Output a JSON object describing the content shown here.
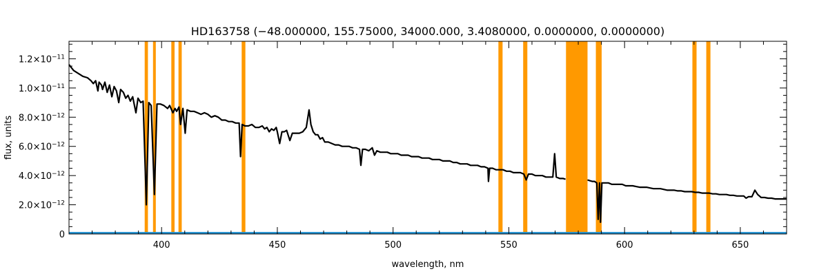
{
  "chart_data": {
    "type": "line",
    "title": "HD163758    (−48.000000, 155.75000, 34000.000, 3.4080000, 0.0000000, 0.0000000)",
    "xlabel": "wavelength, nm",
    "ylabel": "flux, units",
    "xlim": [
      360,
      670
    ],
    "ylim": [
      0,
      1.32e-11
    ],
    "x_ticks": [
      {
        "value": 400,
        "label": "400"
      },
      {
        "value": 450,
        "label": "450"
      },
      {
        "value": 500,
        "label": "500"
      },
      {
        "value": 550,
        "label": "550"
      },
      {
        "value": 600,
        "label": "600"
      },
      {
        "value": 650,
        "label": "650"
      }
    ],
    "y_ticks": [
      {
        "value": 0,
        "mantissa": "0",
        "exponent": ""
      },
      {
        "value": 2e-12,
        "mantissa": "2.0×10",
        "exponent": "−12"
      },
      {
        "value": 4e-12,
        "mantissa": "4.0×10",
        "exponent": "−12"
      },
      {
        "value": 6e-12,
        "mantissa": "6.0×10",
        "exponent": "−12"
      },
      {
        "value": 8e-12,
        "mantissa": "8.0×10",
        "exponent": "−12"
      },
      {
        "value": 1e-11,
        "mantissa": "1.0×10",
        "exponent": "−11"
      },
      {
        "value": 1.2e-11,
        "mantissa": "1.2×10",
        "exponent": "−11"
      }
    ],
    "grid": false,
    "colors": {
      "spectrum": "#000000",
      "bands": "#ff9900",
      "baseline": "#1e8fd0"
    },
    "masked_bands": [
      [
        392.7,
        394.1
      ],
      [
        396.3,
        397.5
      ],
      [
        404.2,
        405.6
      ],
      [
        407.3,
        408.7
      ],
      [
        434.6,
        436.2
      ],
      [
        545.5,
        547.3
      ],
      [
        556.2,
        558.0
      ],
      [
        574.7,
        584.0
      ],
      [
        587.6,
        590.1
      ],
      [
        629.3,
        631.1
      ],
      [
        635.3,
        637.1
      ]
    ],
    "series": [
      {
        "values": [
          [
            360,
            1.16e-11
          ],
          [
            362,
            1.12e-11
          ],
          [
            364,
            1.1e-11
          ],
          [
            366,
            1.08e-11
          ],
          [
            368,
            1.07e-11
          ],
          [
            369.5,
            1.05e-11
          ],
          [
            370.5,
            1.03e-11
          ],
          [
            371.5,
            1.05e-11
          ],
          [
            372.5,
            9.8e-12
          ],
          [
            373,
            1.04e-11
          ],
          [
            374,
            1.02e-11
          ],
          [
            374.5,
            9.9e-12
          ],
          [
            375.5,
            1.04e-11
          ],
          [
            376.5,
            9.7e-12
          ],
          [
            377.5,
            1.02e-11
          ],
          [
            378.5,
            9.4e-12
          ],
          [
            379.5,
            1.01e-11
          ],
          [
            380.5,
            9.8e-12
          ],
          [
            381.5,
            9e-12
          ],
          [
            382.3,
            9.9e-12
          ],
          [
            383.5,
            9.7e-12
          ],
          [
            384.5,
            9.3e-12
          ],
          [
            385.5,
            9.5e-12
          ],
          [
            386.5,
            9.1e-12
          ],
          [
            387.5,
            9.4e-12
          ],
          [
            388.9,
            8.3e-12
          ],
          [
            389.8,
            9.3e-12
          ],
          [
            391,
            9e-12
          ],
          [
            392,
            9.1e-12
          ],
          [
            393.4,
            2e-12
          ],
          [
            394.5,
            9e-12
          ],
          [
            395.5,
            8.8e-12
          ],
          [
            396.9,
            2.7e-12
          ],
          [
            398,
            8.9e-12
          ],
          [
            399.5,
            8.9e-12
          ],
          [
            401,
            8.8e-12
          ],
          [
            402.6,
            8.6e-12
          ],
          [
            403.5,
            8.8e-12
          ],
          [
            404.9,
            8.3e-12
          ],
          [
            405.8,
            8.6e-12
          ],
          [
            406.5,
            8.4e-12
          ],
          [
            407.5,
            8.7e-12
          ],
          [
            408.2,
            7.5e-12
          ],
          [
            409.2,
            8.6e-12
          ],
          [
            410.2,
            6.9e-12
          ],
          [
            411,
            8.5e-12
          ],
          [
            412.5,
            8.4e-12
          ],
          [
            414,
            8.4e-12
          ],
          [
            415.5,
            8.3e-12
          ],
          [
            417,
            8.2e-12
          ],
          [
            418.5,
            8.3e-12
          ],
          [
            420,
            8.2e-12
          ],
          [
            421.5,
            8e-12
          ],
          [
            423,
            8.1e-12
          ],
          [
            424.5,
            8e-12
          ],
          [
            426,
            7.8e-12
          ],
          [
            427.5,
            7.8e-12
          ],
          [
            429,
            7.7e-12
          ],
          [
            430.5,
            7.7e-12
          ],
          [
            432,
            7.6e-12
          ],
          [
            433.5,
            7.6e-12
          ],
          [
            434.1,
            5.3e-12
          ],
          [
            434.8,
            7.5e-12
          ],
          [
            436,
            7.4e-12
          ],
          [
            437.5,
            7.4e-12
          ],
          [
            439,
            7.5e-12
          ],
          [
            440.5,
            7.3e-12
          ],
          [
            442,
            7.3e-12
          ],
          [
            443.5,
            7.4e-12
          ],
          [
            444.5,
            7.2e-12
          ],
          [
            445.5,
            7.3e-12
          ],
          [
            446.5,
            7e-12
          ],
          [
            447.5,
            7.2e-12
          ],
          [
            448.5,
            7.1e-12
          ],
          [
            449.5,
            7.3e-12
          ],
          [
            450,
            7e-12
          ],
          [
            451,
            6.2e-12
          ],
          [
            452,
            7e-12
          ],
          [
            453,
            7e-12
          ],
          [
            454,
            7.1e-12
          ],
          [
            455.4,
            6.4e-12
          ],
          [
            456.5,
            6.9e-12
          ],
          [
            458,
            6.9e-12
          ],
          [
            459.5,
            6.9e-12
          ],
          [
            461,
            7e-12
          ],
          [
            462.5,
            7.3e-12
          ],
          [
            463.7,
            8.5e-12
          ],
          [
            464.5,
            7.5e-12
          ],
          [
            465.5,
            7e-12
          ],
          [
            466.5,
            6.8e-12
          ],
          [
            467.5,
            6.8e-12
          ],
          [
            468.5,
            6.5e-12
          ],
          [
            469.5,
            6.6e-12
          ],
          [
            470.5,
            6.3e-12
          ],
          [
            472,
            6.3e-12
          ],
          [
            473.5,
            6.2e-12
          ],
          [
            475,
            6.1e-12
          ],
          [
            476.5,
            6.1e-12
          ],
          [
            478,
            6e-12
          ],
          [
            479.5,
            6e-12
          ],
          [
            481,
            6e-12
          ],
          [
            482.5,
            5.9e-12
          ],
          [
            484,
            5.9e-12
          ],
          [
            485.5,
            5.8e-12
          ],
          [
            486.1,
            4.7e-12
          ],
          [
            486.8,
            5.8e-12
          ],
          [
            488,
            5.8e-12
          ],
          [
            489.5,
            5.7e-12
          ],
          [
            491,
            5.9e-12
          ],
          [
            492,
            5.4e-12
          ],
          [
            493,
            5.7e-12
          ],
          [
            494.5,
            5.6e-12
          ],
          [
            496,
            5.6e-12
          ],
          [
            497.5,
            5.6e-12
          ],
          [
            499,
            5.5e-12
          ],
          [
            500.5,
            5.5e-12
          ],
          [
            502,
            5.5e-12
          ],
          [
            503.5,
            5.4e-12
          ],
          [
            505,
            5.4e-12
          ],
          [
            506.5,
            5.4e-12
          ],
          [
            508,
            5.3e-12
          ],
          [
            509.5,
            5.3e-12
          ],
          [
            511,
            5.3e-12
          ],
          [
            512.5,
            5.2e-12
          ],
          [
            514,
            5.2e-12
          ],
          [
            515.5,
            5.2e-12
          ],
          [
            517,
            5.1e-12
          ],
          [
            518.5,
            5.1e-12
          ],
          [
            520,
            5.1e-12
          ],
          [
            521.5,
            5e-12
          ],
          [
            523,
            5e-12
          ],
          [
            524.5,
            5e-12
          ],
          [
            526,
            4.9e-12
          ],
          [
            527.5,
            4.9e-12
          ],
          [
            529,
            4.8e-12
          ],
          [
            530.5,
            4.8e-12
          ],
          [
            532,
            4.8e-12
          ],
          [
            533.5,
            4.7e-12
          ],
          [
            535,
            4.7e-12
          ],
          [
            536.5,
            4.7e-12
          ],
          [
            538,
            4.6e-12
          ],
          [
            539.5,
            4.6e-12
          ],
          [
            541,
            4.5e-12
          ],
          [
            541.2,
            3.6e-12
          ],
          [
            541.7,
            4.5e-12
          ],
          [
            543,
            4.5e-12
          ],
          [
            544.5,
            4.4e-12
          ],
          [
            546,
            4.4e-12
          ],
          [
            547.5,
            4.4e-12
          ],
          [
            549,
            4.3e-12
          ],
          [
            550.5,
            4.3e-12
          ],
          [
            552,
            4.2e-12
          ],
          [
            553.5,
            4.2e-12
          ],
          [
            555,
            4.2e-12
          ],
          [
            556.5,
            4.1e-12
          ],
          [
            557.5,
            3.7e-12
          ],
          [
            558.5,
            4.1e-12
          ],
          [
            560,
            4.1e-12
          ],
          [
            561.5,
            4e-12
          ],
          [
            563,
            4e-12
          ],
          [
            564.5,
            4e-12
          ],
          [
            566,
            3.9e-12
          ],
          [
            567.5,
            3.9e-12
          ],
          [
            569,
            3.9e-12
          ],
          [
            569.8,
            5.5e-12
          ],
          [
            570.5,
            3.9e-12
          ],
          [
            572,
            3.8e-12
          ],
          [
            573.5,
            3.8e-12
          ],
          [
            574.5,
            3.75e-12
          ]
        ]
      },
      {
        "values": [
          [
            584.0,
            3.7e-12
          ],
          [
            585,
            3.65e-12
          ],
          [
            586,
            3.6e-12
          ],
          [
            587,
            3.6e-12
          ],
          [
            588,
            3.5e-12
          ],
          [
            588.6,
            1e-12
          ],
          [
            589.2,
            3.5e-12
          ],
          [
            589.6,
            8e-13
          ],
          [
            590.2,
            3.5e-12
          ],
          [
            591.5,
            3.5e-12
          ],
          [
            593,
            3.5e-12
          ],
          [
            594.5,
            3.4e-12
          ],
          [
            596,
            3.4e-12
          ],
          [
            597.5,
            3.4e-12
          ],
          [
            599,
            3.4e-12
          ],
          [
            600.5,
            3.3e-12
          ],
          [
            602,
            3.3e-12
          ],
          [
            603.5,
            3.3e-12
          ],
          [
            605,
            3.25e-12
          ],
          [
            606.5,
            3.2e-12
          ],
          [
            608,
            3.2e-12
          ],
          [
            609.5,
            3.2e-12
          ],
          [
            611,
            3.15e-12
          ],
          [
            612.5,
            3.1e-12
          ],
          [
            614,
            3.1e-12
          ],
          [
            615.5,
            3.1e-12
          ],
          [
            617,
            3.05e-12
          ],
          [
            618.5,
            3e-12
          ],
          [
            620,
            3e-12
          ],
          [
            621.5,
            3e-12
          ],
          [
            623,
            2.95e-12
          ],
          [
            624.5,
            2.95e-12
          ],
          [
            626,
            2.9e-12
          ],
          [
            627.5,
            2.9e-12
          ],
          [
            629,
            2.9e-12
          ],
          [
            630.5,
            2.85e-12
          ],
          [
            632,
            2.85e-12
          ],
          [
            633.5,
            2.8e-12
          ],
          [
            635,
            2.8e-12
          ],
          [
            636.5,
            2.8e-12
          ],
          [
            638,
            2.75e-12
          ],
          [
            639.5,
            2.75e-12
          ],
          [
            641,
            2.7e-12
          ],
          [
            642.5,
            2.7e-12
          ],
          [
            644,
            2.7e-12
          ],
          [
            645.5,
            2.65e-12
          ],
          [
            647,
            2.65e-12
          ],
          [
            648.5,
            2.6e-12
          ],
          [
            650,
            2.6e-12
          ],
          [
            651.5,
            2.6e-12
          ],
          [
            652.5,
            2.45e-12
          ],
          [
            653.5,
            2.55e-12
          ],
          [
            655,
            2.55e-12
          ],
          [
            656.3,
            3e-12
          ],
          [
            657.5,
            2.7e-12
          ],
          [
            659,
            2.5e-12
          ],
          [
            660.5,
            2.5e-12
          ],
          [
            662,
            2.45e-12
          ],
          [
            663.5,
            2.45e-12
          ],
          [
            665,
            2.4e-12
          ],
          [
            666.5,
            2.4e-12
          ],
          [
            668,
            2.4e-12
          ],
          [
            670,
            2.4e-12
          ]
        ]
      }
    ],
    "baseline_series": {
      "values": [
        [
          360,
          3e-14
        ],
        [
          670,
          3e-14
        ]
      ]
    }
  }
}
